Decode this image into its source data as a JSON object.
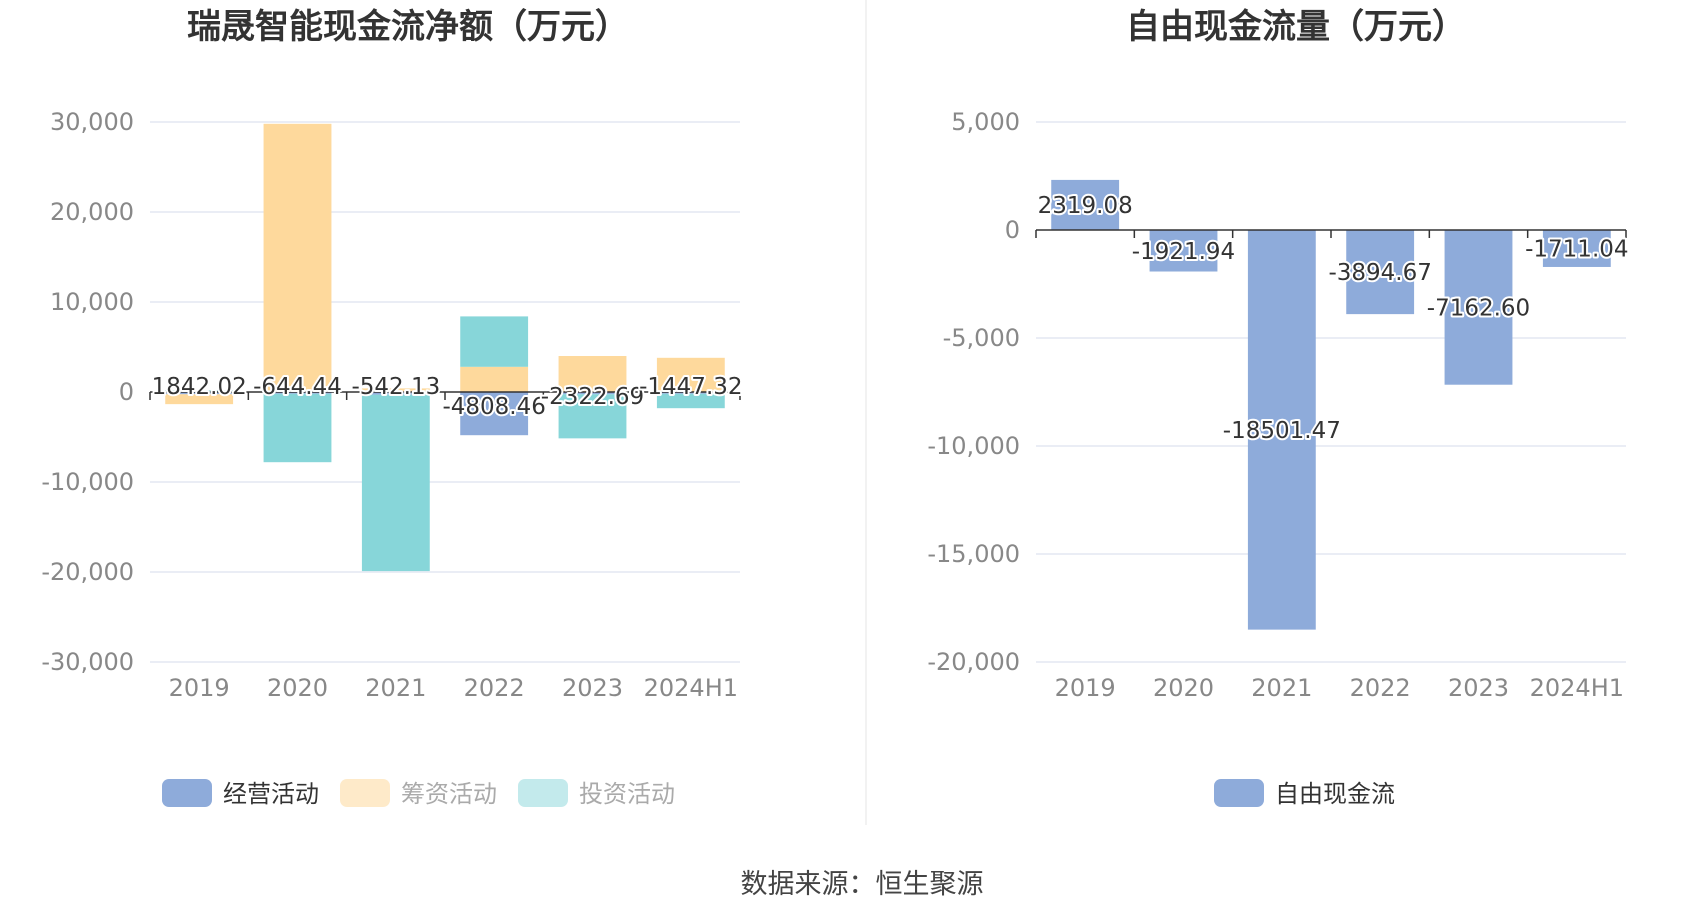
{
  "colors": {
    "operating": "#8eabda",
    "financing": "#fed99c",
    "investing": "#87d6d9",
    "grid": "#e3e7f2",
    "axis": "#333333",
    "divider": "#eeeeee"
  },
  "source_text": "数据来源：恒生聚源",
  "chart_data": [
    {
      "type": "bar",
      "stacked": true,
      "title": "瑞晟智能现金流净额（万元）",
      "categories": [
        "2019",
        "2020",
        "2021",
        "2022",
        "2023",
        "2024H1"
      ],
      "y_ticks": [
        "30,000",
        "20,000",
        "10,000",
        "0",
        "-10,000",
        "-20,000",
        "-30,000"
      ],
      "ylim": [
        -30000,
        30000
      ],
      "grid": true,
      "legend_position": "bottom",
      "series": [
        {
          "name": "经营活动",
          "color_key": "operating",
          "values": [
            -250,
            -200,
            -300,
            -4800,
            -250,
            -200
          ]
        },
        {
          "name": "筹资活动",
          "color_key": "financing",
          "values": [
            -1100,
            29800,
            400,
            2800,
            4000,
            3800
          ]
        },
        {
          "name": "投资活动",
          "color_key": "investing",
          "values": [
            200,
            -7600,
            -19600,
            5600,
            -4900,
            -1600
          ]
        }
      ],
      "net_labels": [
        "1842.02",
        "-644.44",
        "-542.13",
        "-4808.46",
        "-2322.69",
        "-1447.32"
      ]
    },
    {
      "type": "bar",
      "title": "自由现金流量（万元）",
      "categories": [
        "2019",
        "2020",
        "2021",
        "2022",
        "2023",
        "2024H1"
      ],
      "y_ticks": [
        "5,000",
        "0",
        "-5,000",
        "-10,000",
        "-15,000",
        "-20,000"
      ],
      "ylim": [
        -20000,
        5000
      ],
      "grid": true,
      "legend_position": "bottom",
      "series": [
        {
          "name": "自由现金流",
          "color_key": "operating",
          "values": [
            2319.08,
            -1921.94,
            -18501.47,
            -3894.67,
            -7162.6,
            -1711.04
          ]
        }
      ],
      "value_labels": [
        "2319.08",
        "-1921.94",
        "-18501.47",
        "-3894.67",
        "-7162.60",
        "-1711.04"
      ]
    }
  ]
}
